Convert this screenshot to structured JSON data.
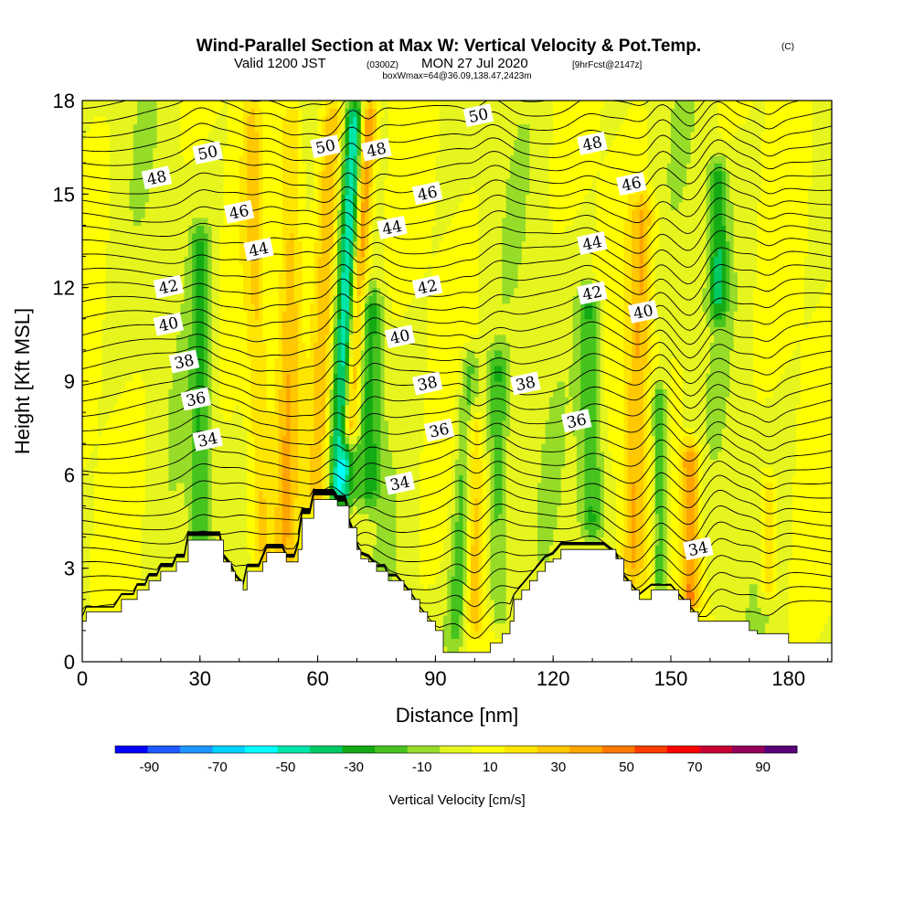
{
  "title": {
    "main": "Wind-Parallel Section at Max W: Vertical Velocity & Pot.Temp.",
    "copyright": "(C)",
    "valid_prefix": "Valid 1200 JST",
    "valid_utc": "(0300Z)",
    "valid_date": "MON 27 Jul 2020",
    "forecast": "[9hrFcst@2147z]",
    "box_info": "boxWmax=64@36.09,138.47,2423m"
  },
  "chart_data": {
    "type": "heatmap",
    "xlabel": "Distance [nm]",
    "ylabel": "Height [Kft MSL]",
    "xlim": [
      0,
      191
    ],
    "ylim": [
      0,
      18
    ],
    "x_ticks": [
      0,
      30,
      60,
      90,
      120,
      150,
      180
    ],
    "y_ticks": [
      0,
      3,
      6,
      9,
      12,
      15,
      18
    ],
    "colorbar": {
      "label": "Vertical Velocity [cm/s]",
      "tick_values": [
        -90,
        -70,
        -50,
        -30,
        -10,
        10,
        30,
        50,
        70,
        90
      ],
      "tick_labels": [
        "-90",
        "-70",
        "-50",
        "-30",
        "-10",
        "10",
        "30",
        "50",
        "70",
        "90"
      ],
      "bins": [
        -100,
        -90,
        -80,
        -70,
        -60,
        -50,
        -40,
        -30,
        -20,
        -10,
        0,
        10,
        20,
        30,
        40,
        50,
        60,
        70,
        80,
        90,
        100
      ],
      "colors": [
        "#0000ff",
        "#1e5aff",
        "#1e96ff",
        "#00d2ff",
        "#00ffff",
        "#00e6aa",
        "#00c864",
        "#14aa14",
        "#46c31e",
        "#96dc28",
        "#e6f51e",
        "#ffff00",
        "#ffe600",
        "#ffc800",
        "#ffa500",
        "#ff7800",
        "#ff3c00",
        "#ff0000",
        "#c80032",
        "#96005a",
        "#5a0078"
      ]
    },
    "terrain_kft": [
      [
        0,
        1.3
      ],
      [
        1,
        1.6
      ],
      [
        8,
        1.6
      ],
      [
        10,
        2.0
      ],
      [
        13,
        2.0
      ],
      [
        14,
        2.3
      ],
      [
        16,
        2.3
      ],
      [
        17,
        2.6
      ],
      [
        19,
        2.6
      ],
      [
        20,
        2.9
      ],
      [
        23,
        2.9
      ],
      [
        24,
        3.2
      ],
      [
        26,
        3.2
      ],
      [
        27,
        3.9
      ],
      [
        35,
        3.9
      ],
      [
        36,
        3.2
      ],
      [
        38,
        2.9
      ],
      [
        39,
        2.6
      ],
      [
        41,
        2.3
      ],
      [
        42,
        2.9
      ],
      [
        45,
        2.9
      ],
      [
        46,
        3.2
      ],
      [
        47,
        3.5
      ],
      [
        51,
        3.5
      ],
      [
        52,
        3.2
      ],
      [
        54,
        3.2
      ],
      [
        55,
        3.6
      ],
      [
        56,
        4.6
      ],
      [
        58,
        4.6
      ],
      [
        59,
        5.2
      ],
      [
        64,
        5.2
      ],
      [
        65,
        5.0
      ],
      [
        67,
        5.0
      ],
      [
        68,
        4.3
      ],
      [
        70,
        3.6
      ],
      [
        71,
        3.3
      ],
      [
        73,
        3.2
      ],
      [
        75,
        2.9
      ],
      [
        77,
        2.9
      ],
      [
        78,
        2.6
      ],
      [
        80,
        2.6
      ],
      [
        82,
        2.3
      ],
      [
        84,
        2.0
      ],
      [
        86,
        1.6
      ],
      [
        88,
        1.3
      ],
      [
        90,
        1.0
      ],
      [
        92,
        0.3
      ],
      [
        103,
        0.3
      ],
      [
        104,
        0.6
      ],
      [
        107,
        0.9
      ],
      [
        109,
        1.3
      ],
      [
        110,
        2.0
      ],
      [
        112,
        2.3
      ],
      [
        114,
        2.6
      ],
      [
        116,
        2.9
      ],
      [
        118,
        3.2
      ],
      [
        120,
        3.3
      ],
      [
        122,
        3.6
      ],
      [
        133,
        3.6
      ],
      [
        136,
        3.3
      ],
      [
        138,
        2.6
      ],
      [
        140,
        2.3
      ],
      [
        142,
        2.0
      ],
      [
        145,
        2.3
      ],
      [
        150,
        2.3
      ],
      [
        152,
        2.0
      ],
      [
        155,
        1.6
      ],
      [
        157,
        1.3
      ],
      [
        168,
        1.3
      ],
      [
        170,
        1.0
      ],
      [
        172,
        0.9
      ],
      [
        180,
        0.6
      ],
      [
        191,
        0.6
      ]
    ],
    "w_features_cms": [
      {
        "x": 65.5,
        "z_bottom": 5.0,
        "z_top": 18,
        "slope_nm_per_kft": 0.35,
        "width_nm": 3.2,
        "w": -60
      },
      {
        "x": 68.0,
        "z_bottom": 7.0,
        "z_top": 18,
        "slope_nm_per_kft": 0.45,
        "width_nm": 2.2,
        "w": 70
      },
      {
        "x": 60.0,
        "z_bottom": 4.8,
        "z_top": 18,
        "slope_nm_per_kft": 0.3,
        "width_nm": 3.0,
        "w": 35
      },
      {
        "x": 52.0,
        "z_bottom": 2.5,
        "z_top": 18,
        "slope_nm_per_kft": 0.1,
        "width_nm": 3.0,
        "w": 25
      },
      {
        "x": 46.0,
        "z_bottom": 3.0,
        "z_top": 18,
        "slope_nm_per_kft": -0.2,
        "width_nm": 2.5,
        "w": 18
      },
      {
        "x": 30.0,
        "z_bottom": 2.0,
        "z_top": 14,
        "slope_nm_per_kft": 0.0,
        "width_nm": 2.5,
        "w": -25
      },
      {
        "x": 73.0,
        "z_bottom": 5.0,
        "z_top": 12,
        "slope_nm_per_kft": 0.1,
        "width_nm": 3.0,
        "w": -30
      },
      {
        "x": 95.0,
        "z_bottom": 0.5,
        "z_top": 10,
        "slope_nm_per_kft": 0.4,
        "width_nm": 2.5,
        "w": -25
      },
      {
        "x": 100.0,
        "z_bottom": 1.0,
        "z_top": 8,
        "slope_nm_per_kft": 0.0,
        "width_nm": 2.0,
        "w": 25
      },
      {
        "x": 106.0,
        "z_bottom": 1.0,
        "z_top": 10,
        "slope_nm_per_kft": 0.0,
        "width_nm": 2.5,
        "w": -25
      },
      {
        "x": 130.0,
        "z_bottom": 4.0,
        "z_top": 12,
        "slope_nm_per_kft": -0.1,
        "width_nm": 3.0,
        "w": -30
      },
      {
        "x": 140.0,
        "z_bottom": 2.5,
        "z_top": 15,
        "slope_nm_per_kft": 0.25,
        "width_nm": 3.0,
        "w": 30
      },
      {
        "x": 147.0,
        "z_bottom": 2.0,
        "z_top": 9,
        "slope_nm_per_kft": 0.0,
        "width_nm": 2.0,
        "w": -30
      },
      {
        "x": 155.0,
        "z_bottom": 1.5,
        "z_top": 7,
        "slope_nm_per_kft": 0.0,
        "width_nm": 2.5,
        "w": 45
      },
      {
        "x": 162.0,
        "z_bottom": 11.0,
        "z_top": 16,
        "slope_nm_per_kft": 0.0,
        "width_nm": 2.5,
        "w": -35
      },
      {
        "x": 175.0,
        "z_bottom": 2.0,
        "z_top": 6,
        "slope_nm_per_kft": 0.0,
        "width_nm": 2.0,
        "w": 25
      }
    ],
    "pot_temp_labels": [
      {
        "text": "50",
        "x": 32,
        "z": 16.3
      },
      {
        "text": "48",
        "x": 19,
        "z": 15.5
      },
      {
        "text": "46",
        "x": 40,
        "z": 14.4
      },
      {
        "text": "44",
        "x": 45,
        "z": 13.2
      },
      {
        "text": "42",
        "x": 22,
        "z": 12.0
      },
      {
        "text": "40",
        "x": 22,
        "z": 10.8
      },
      {
        "text": "38",
        "x": 26,
        "z": 9.6
      },
      {
        "text": "36",
        "x": 29,
        "z": 8.4
      },
      {
        "text": "34",
        "x": 32,
        "z": 7.1
      },
      {
        "text": "50",
        "x": 62,
        "z": 16.5
      },
      {
        "text": "48",
        "x": 75,
        "z": 16.4
      },
      {
        "text": "46",
        "x": 88,
        "z": 15.0
      },
      {
        "text": "44",
        "x": 79,
        "z": 13.9
      },
      {
        "text": "42",
        "x": 88,
        "z": 12.0
      },
      {
        "text": "40",
        "x": 81,
        "z": 10.4
      },
      {
        "text": "38",
        "x": 88,
        "z": 8.9
      },
      {
        "text": "36",
        "x": 91,
        "z": 7.4
      },
      {
        "text": "34",
        "x": 81,
        "z": 5.7
      },
      {
        "text": "50",
        "x": 101,
        "z": 17.5
      },
      {
        "text": "48",
        "x": 130,
        "z": 16.6
      },
      {
        "text": "46",
        "x": 140,
        "z": 15.3
      },
      {
        "text": "44",
        "x": 130,
        "z": 13.4
      },
      {
        "text": "42",
        "x": 130,
        "z": 11.8
      },
      {
        "text": "40",
        "x": 143,
        "z": 11.2
      },
      {
        "text": "38",
        "x": 113,
        "z": 8.9
      },
      {
        "text": "36",
        "x": 126,
        "z": 7.7
      },
      {
        "text": "34",
        "x": 157,
        "z": 3.6
      }
    ]
  },
  "colors": {
    "background": "#ffffff",
    "terrain": "#ffffff",
    "contour": "#000000",
    "label_box": "#ffffff"
  }
}
